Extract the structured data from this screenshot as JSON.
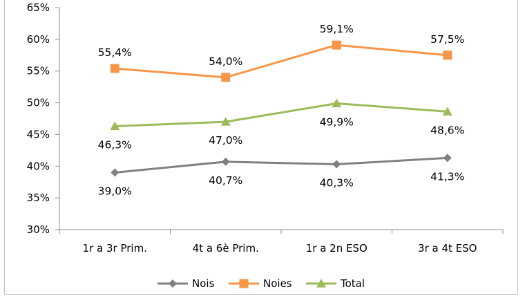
{
  "chart_data": {
    "type": "line",
    "title": "",
    "xlabel": "",
    "ylabel": "",
    "categories": [
      "1r a 3r Prim.",
      "4t a 6è Prim.",
      "1r a 2n ESO",
      "3r a 4t ESO"
    ],
    "ylim": [
      30,
      65
    ],
    "yticks": [
      30,
      35,
      40,
      45,
      50,
      55,
      60,
      65
    ],
    "ytick_labels": [
      "30%",
      "35%",
      "40%",
      "45%",
      "50%",
      "55%",
      "60%",
      "65%"
    ],
    "grid": false,
    "legend_position": "bottom",
    "series": [
      {
        "name": "Nois",
        "values": [
          39.0,
          40.7,
          40.3,
          41.3
        ],
        "labels": [
          "39,0%",
          "40,7%",
          "40,3%",
          "41,3%"
        ],
        "color": "#808080",
        "marker": "diamond",
        "label_position": "below"
      },
      {
        "name": "Noies",
        "values": [
          55.4,
          54.0,
          59.1,
          57.5
        ],
        "labels": [
          "55,4%",
          "54,0%",
          "59,1%",
          "57,5%"
        ],
        "color": "#f79646",
        "marker": "square",
        "label_position": "above"
      },
      {
        "name": "Total",
        "values": [
          46.3,
          47.0,
          49.9,
          48.6
        ],
        "labels": [
          "46,3%",
          "47,0%",
          "49,9%",
          "48,6%"
        ],
        "color": "#9bbb59",
        "marker": "triangle",
        "label_position": "below"
      }
    ]
  }
}
